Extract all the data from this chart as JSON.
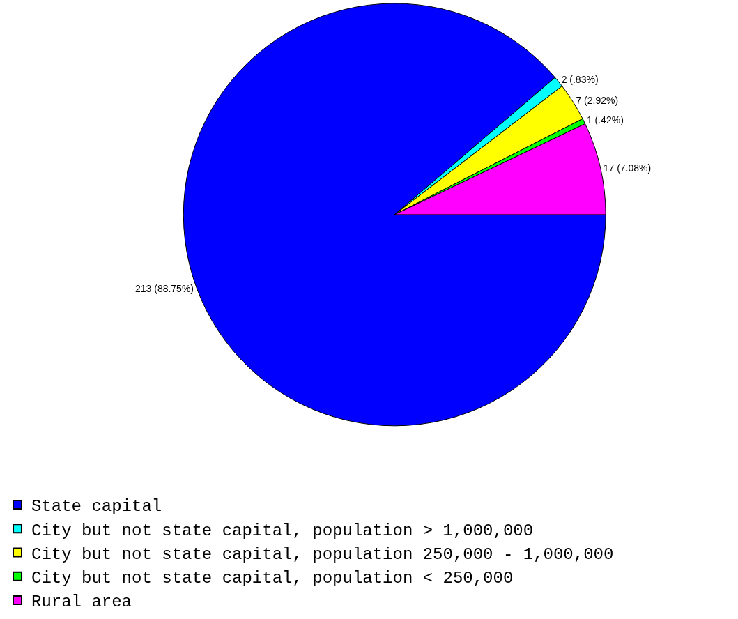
{
  "chart_data": {
    "type": "pie",
    "categories": [
      "State capital",
      "City but not state capital, population > 1,000,000",
      "City but not state capital, population 250,000 - 1,000,000",
      "City but not state capital, population < 250,000",
      "Rural area"
    ],
    "values": [
      213,
      2,
      7,
      1,
      17
    ],
    "value_labels": [
      "213 (88.75%)",
      "2 (.83%)",
      "7 (2.92%)",
      "1 (.42%)",
      "17 (7.08%)"
    ],
    "colors": [
      "#0000ff",
      "#00ffff",
      "#ffff00",
      "#00ff00",
      "#ff00ff"
    ],
    "legend": "bottom"
  }
}
